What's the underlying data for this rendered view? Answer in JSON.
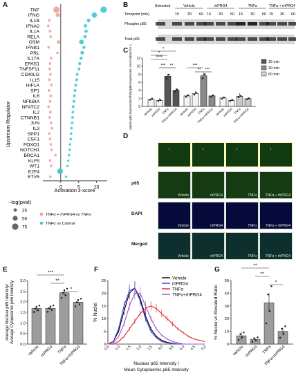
{
  "panels": {
    "A": "A",
    "B": "B",
    "C": "C",
    "D": "D",
    "E": "E",
    "F": "F",
    "G": "G"
  },
  "panelA": {
    "ylabel": "Upstream Regulator",
    "xlabel": "Activation z-score",
    "xticks": [
      "0",
      "5",
      "10"
    ],
    "regulators": [
      "TNF",
      "IFNG",
      "IL1B",
      "IFNA2",
      "IL1A",
      "RELA",
      "OSM",
      "IFNB1",
      "PRL",
      "IL17A",
      "EPAS1",
      "TNFSF11",
      "CD40LG",
      "IL15",
      "HIF1A",
      "SP1",
      "IL6",
      "NFKBIA",
      "NFATC2",
      "IL2",
      "CTNNB1",
      "JUN",
      "IL3",
      "SPP1",
      "CSF1",
      "FOXO1",
      "NOTCH1",
      "BRCA1",
      "KLF5",
      "WT1",
      "E2F4",
      "ETV5"
    ],
    "size_legend_title": "−log(pval)",
    "size_legend": [
      "25",
      "50",
      "75"
    ],
    "color_legend": [
      "TNFα + rhPRG4 vs TNFα",
      "TNFα vs Control"
    ],
    "colors": {
      "red": "#f29a98",
      "cyan": "#3fc8d0"
    }
  },
  "panelB": {
    "conditions": [
      "Untreated",
      "Vehicle",
      "rhPRG4",
      "TNFα",
      "TNFα + rhPRG4"
    ],
    "timepoint_label": "Timepoint (min)",
    "timepoints": [
      "15",
      "30",
      "60",
      "15",
      "30",
      "60",
      "15",
      "30",
      "60",
      "15",
      "30",
      "60"
    ],
    "rows": [
      "Phospho p65",
      "Total p65"
    ]
  },
  "panelC": {
    "ylabel": "phospho-p65 Expression/Total p65 Expression (normalized to Untreated)",
    "groups": [
      "Vehicle",
      "rhPRG4",
      "TNFα",
      "TNFα+rhPRG4",
      "Vehicle",
      "rhPRG4",
      "TNFα",
      "TNFα+rhPRG4",
      "Vehicle",
      "rhPRG4",
      "TNFα",
      "TNFα+rhPRG4"
    ],
    "legend": [
      "15 min",
      "30 min",
      "60 min"
    ],
    "sig": [
      "*",
      "*",
      "****",
      "***",
      "**",
      "***",
      "**",
      "***"
    ],
    "yticks": [
      "0",
      "2",
      "4",
      "6",
      "8",
      "10",
      "12"
    ]
  },
  "panelD": {
    "row_labels": [
      "p65",
      "DAPI",
      "Merged"
    ],
    "captions": [
      "Vehicle",
      "rhPRG4",
      "TNFα",
      "TNFα + rhPRG4"
    ]
  },
  "panelE": {
    "ylabel": "Average Nuclear p65 Intensity/ Average Cytoplasmic p65 Intensity",
    "categories": [
      "Vehicle",
      "rhPRG4",
      "TNFα",
      "TNFα+rhPRG4"
    ],
    "sig": [
      "***",
      "**",
      "*"
    ],
    "yticks": [
      "0.0",
      "0.5",
      "1.0",
      "1.5",
      "2.0",
      "2.5",
      "3.0"
    ]
  },
  "panelF": {
    "ylabel": "% Nuclei",
    "xlabel1": "Nuclear p65 Intensity /",
    "xlabel2": "Mean Cytoplasmic p65 Intensity",
    "legend": [
      "Vehicle",
      "rhPRG4",
      "TNFα",
      "TNFα+rhPRG4"
    ],
    "colors": [
      "#000000",
      "#3636d6",
      "#e02020",
      "#a050c8"
    ],
    "yticks": [
      "0",
      "5",
      "10",
      "15",
      "20",
      "25"
    ]
  },
  "panelG": {
    "ylabel": "% Nuclei w/ Elevated Ratio",
    "categories": [
      "Vehicle",
      "rhPRG4",
      "TNFα",
      "TNFα+rhPRG4"
    ],
    "sig": [
      "**",
      "**",
      "*"
    ],
    "yticks": [
      "0",
      "10",
      "20",
      "30",
      "40",
      "50"
    ]
  },
  "chart_data": [
    {
      "type": "scatter",
      "title": "A",
      "xlabel": "Activation z-score",
      "ylabel": "Upstream Regulator",
      "xlim": [
        -5,
        13
      ],
      "series": [
        {
          "name": "TNFα + rhPRG4 vs TNFα",
          "x": [
            -1.2,
            -0.8,
            -3.2,
            -3.5,
            -3.0,
            -2.8,
            -0.6,
            -3.4,
            -0.9,
            -2.7,
            -3.0,
            -3.1,
            -2.9,
            -3.2,
            -2.6,
            -3.3,
            -2.8,
            -3.0,
            -3.4,
            -2.9,
            -3.1,
            -2.7,
            -2.5,
            -3.2,
            -3.0,
            -2.8,
            -2.6,
            -1.5,
            -3.0,
            -2.7,
            -0.4,
            -2.9
          ],
          "y": [
            "TNF",
            "IFNG",
            "IL1B",
            "IFNA2",
            "IL1A",
            "RELA",
            "OSM",
            "IFNB1",
            "PRL",
            "IL17A",
            "EPAS1",
            "TNFSF11",
            "CD40LG",
            "IL15",
            "HIF1A",
            "SP1",
            "IL6",
            "NFKBIA",
            "NFATC2",
            "IL2",
            "CTNNB1",
            "JUN",
            "IL3",
            "SPP1",
            "CSF1",
            "FOXO1",
            "NOTCH1",
            "BRCA1",
            "KLF5",
            "WT1",
            "E2F4",
            "ETV5"
          ]
        },
        {
          "name": "TNFα vs Control",
          "x": [
            12.0,
            9.4,
            7.8,
            6.9,
            7.1,
            6.8,
            5.8,
            6.5,
            6.0,
            5.7,
            5.3,
            5.1,
            4.6,
            4.5,
            4.2,
            4.0,
            3.8,
            3.7,
            3.5,
            3.4,
            3.3,
            3.2,
            3.0,
            2.9,
            2.8,
            2.6,
            2.5,
            2.3,
            2.1,
            1.9,
            -0.2,
            1.5
          ],
          "y": [
            "TNF",
            "IFNG",
            "IL1B",
            "IFNA2",
            "IL1A",
            "RELA",
            "OSM",
            "IFNB1",
            "PRL",
            "IL17A",
            "EPAS1",
            "TNFSF11",
            "CD40LG",
            "IL15",
            "HIF1A",
            "SP1",
            "IL6",
            "NFKBIA",
            "NFATC2",
            "IL2",
            "CTNNB1",
            "JUN",
            "IL3",
            "SPP1",
            "CSF1",
            "FOXO1",
            "NOTCH1",
            "BRCA1",
            "KLF5",
            "WT1",
            "E2F4",
            "ETV5"
          ]
        }
      ]
    },
    {
      "type": "bar",
      "title": "C",
      "categories": [
        "Vehicle",
        "rhPRG4",
        "TNFα",
        "TNFα+rhPRG4",
        "Vehicle",
        "rhPRG4",
        "TNFα",
        "TNFα+rhPRG4",
        "Vehicle",
        "rhPRG4",
        "TNFα",
        "TNFα+rhPRG4"
      ],
      "values": [
        1.8,
        1.5,
        7.5,
        4.0,
        2.6,
        3.2,
        7.6,
        2.6,
        2.1,
        1.5,
        2.5,
        1.9
      ],
      "errors": [
        0.3,
        0.5,
        0.6,
        0.6,
        0.4,
        0.7,
        0.7,
        0.3,
        0.4,
        0.3,
        0.8,
        0.5
      ],
      "ylim": [
        0,
        12
      ]
    },
    {
      "type": "bar",
      "title": "E",
      "categories": [
        "Vehicle",
        "rhPRG4",
        "TNFα",
        "TNFα+rhPRG4"
      ],
      "values": [
        1.68,
        1.69,
        2.42,
        1.98
      ],
      "errors": [
        0.12,
        0.08,
        0.13,
        0.03
      ],
      "ylim": [
        0,
        3.0
      ]
    },
    {
      "type": "line",
      "title": "F",
      "xlabel": "Nuclear p65 Intensity / Mean Cytoplasmic p65 Intensity",
      "ylabel": "% Nuclei",
      "x": [
        0.5,
        0.75,
        1.0,
        1.25,
        1.5,
        1.75,
        2.0,
        2.25,
        2.5,
        2.75,
        3.0,
        3.25,
        3.5,
        3.75,
        4.0,
        4.25,
        4.5,
        4.75,
        5.0
      ],
      "ylim": [
        0,
        25
      ],
      "series": [
        {
          "name": "Vehicle",
          "values": [
            0,
            1,
            5,
            13,
            20,
            22,
            18,
            11,
            6,
            3,
            1.5,
            0.7,
            0.3,
            0,
            0,
            0,
            0,
            0,
            0
          ]
        },
        {
          "name": "rhPRG4",
          "values": [
            0,
            1,
            6,
            15,
            21,
            22,
            17,
            10,
            5,
            2.5,
            1,
            0.5,
            0.2,
            0,
            0,
            0,
            0,
            0,
            0
          ]
        },
        {
          "name": "TNFα",
          "values": [
            0,
            0,
            1,
            3,
            6,
            9,
            12,
            14,
            15,
            14,
            12,
            10,
            8,
            6,
            4.5,
            3,
            2,
            1.5,
            1
          ]
        },
        {
          "name": "TNFα+rhPRG4",
          "values": [
            0,
            0.5,
            3,
            8,
            15,
            20,
            20,
            15,
            10,
            6,
            3.5,
            2,
            1,
            0.5,
            0,
            0,
            0,
            0,
            0
          ]
        }
      ]
    },
    {
      "type": "bar",
      "title": "G",
      "categories": [
        "Vehicle",
        "rhPRG4",
        "TNFα",
        "TNFα+rhPRG4"
      ],
      "values": [
        6.5,
        3.8,
        32.5,
        10.0
      ],
      "errors": [
        3.0,
        0.5,
        7.5,
        3.0
      ],
      "ylim": [
        0,
        50
      ]
    }
  ]
}
